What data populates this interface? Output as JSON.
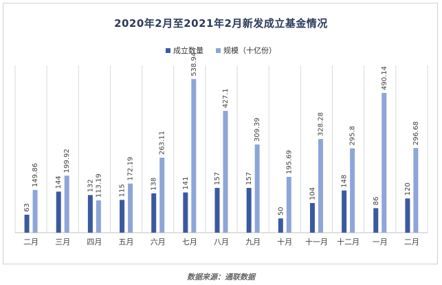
{
  "colors": {
    "count": "#3a5a9f",
    "scale": "#8ea5d8",
    "grid": "#d9d9d9",
    "axis": "#bfbfbf"
  },
  "chart_data": {
    "type": "bar",
    "title": "2020年2月至2021年2月新发成立基金情况",
    "categories": [
      "二月",
      "三月",
      "四月",
      "五月",
      "六月",
      "七月",
      "八月",
      "九月",
      "十月",
      "十一月",
      "十二月",
      "一月",
      "二月"
    ],
    "series": [
      {
        "name": "成立数量",
        "values": [
          63,
          144,
          132,
          115,
          138,
          141,
          157,
          157,
          50,
          104,
          148,
          86,
          120
        ],
        "labels": [
          "63",
          "144",
          "132",
          "115",
          "138",
          "141",
          "157",
          "157",
          "50",
          "104",
          "148",
          "86",
          "120"
        ]
      },
      {
        "name": "规模（十亿份）",
        "values": [
          149.86,
          199.92,
          113.19,
          172.19,
          263.11,
          538.94,
          427.1,
          309.39,
          195.69,
          328.28,
          295.8,
          490.14,
          296.68
        ],
        "labels": [
          "149.86",
          "199.92",
          "113.19",
          "172.19",
          "263.11",
          "538.94",
          "427.1",
          "309.39",
          "195.69",
          "328.28",
          "295.8",
          "490.14",
          "296.68"
        ]
      }
    ],
    "ylim": [
      0,
      560
    ],
    "grid": "vertical separators between categories",
    "legend": "top-center"
  },
  "source": "数据来源：通联数据"
}
